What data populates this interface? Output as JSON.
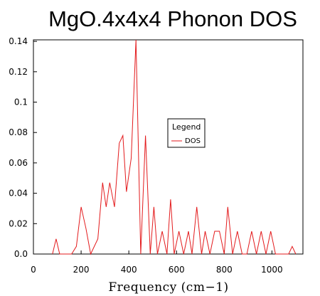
{
  "chart_data": {
    "type": "line",
    "title": "MgO.4x4x4 Phonon DOS",
    "xlabel": "Frequency (cm−1)",
    "ylabel": "",
    "xlim": [
      0,
      1130
    ],
    "ylim": [
      0,
      0.141
    ],
    "x_ticks": [
      {
        "value": 0,
        "label": "0"
      },
      {
        "value": 200,
        "label": "200"
      },
      {
        "value": 400,
        "label": "400"
      },
      {
        "value": 600,
        "label": "600"
      },
      {
        "value": 800,
        "label": "800"
      },
      {
        "value": 1000,
        "label": "1000"
      }
    ],
    "y_ticks": [
      {
        "value": 0,
        "label": "0.0"
      },
      {
        "value": 0.02,
        "label": "0.02"
      },
      {
        "value": 0.04,
        "label": "0.04"
      },
      {
        "value": 0.06,
        "label": "0.06"
      },
      {
        "value": 0.08,
        "label": "0.08"
      },
      {
        "value": 0.1,
        "label": "0.1"
      },
      {
        "value": 0.12,
        "label": "0.12"
      },
      {
        "value": 0.14,
        "label": "0.14"
      }
    ],
    "grid": false,
    "legend": {
      "title": "Legend",
      "placement": "center-right"
    },
    "series": [
      {
        "name": "DOS",
        "color": "#e31a1c",
        "x": [
          80,
          95,
          110,
          160,
          180,
          200,
          220,
          240,
          270,
          290,
          305,
          320,
          340,
          360,
          375,
          390,
          410,
          430,
          450,
          470,
          490,
          505,
          520,
          540,
          560,
          575,
          590,
          610,
          630,
          650,
          665,
          685,
          705,
          720,
          740,
          760,
          780,
          800,
          815,
          835,
          855,
          875,
          895,
          915,
          935,
          955,
          975,
          995,
          1015,
          1035,
          1070,
          1085,
          1100
        ],
        "y": [
          0,
          0.01,
          0,
          0,
          0.005,
          0.031,
          0.017,
          0,
          0.01,
          0.047,
          0.031,
          0.047,
          0.031,
          0.073,
          0.078,
          0.041,
          0.063,
          0.141,
          0,
          0.078,
          0,
          0.031,
          0,
          0.015,
          0,
          0.036,
          0,
          0.015,
          0,
          0.015,
          0,
          0.031,
          0,
          0.015,
          0,
          0.015,
          0.015,
          0,
          0.031,
          0,
          0.015,
          0,
          0,
          0.015,
          0,
          0.015,
          0,
          0.015,
          0,
          0,
          0,
          0.005,
          0
        ]
      }
    ]
  }
}
